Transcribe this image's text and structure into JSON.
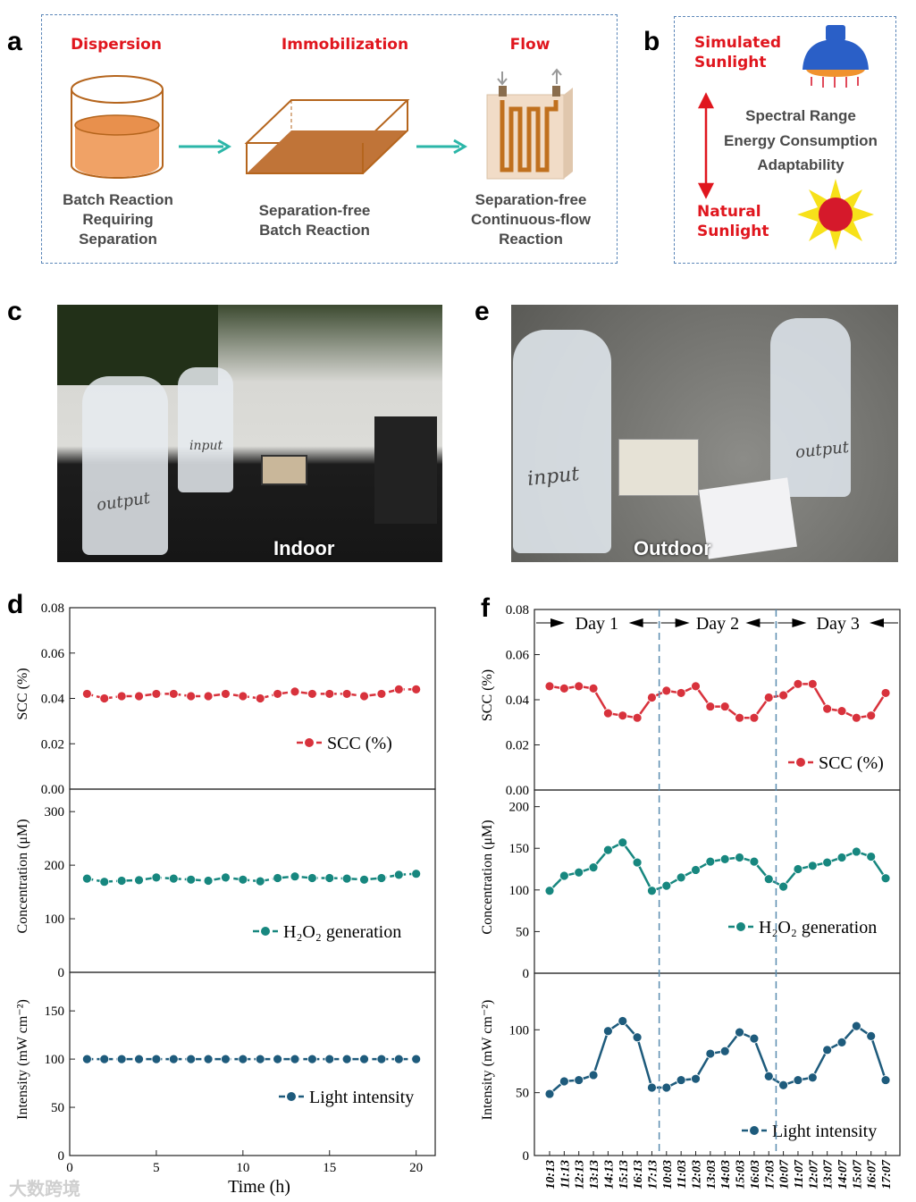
{
  "panel_labels": {
    "a": "a",
    "b": "b",
    "c": "c",
    "d": "d",
    "e": "e",
    "f": "f"
  },
  "panel_a": {
    "steps": [
      {
        "title": "Dispersion",
        "caption": [
          "Batch Reaction",
          "Requiring",
          "Separation"
        ]
      },
      {
        "title": "Immobilization",
        "caption": [
          "Separation-free",
          "Batch Reaction"
        ]
      },
      {
        "title": "Flow",
        "caption": [
          "Separation-free",
          "Continuous-flow",
          "Reaction"
        ]
      }
    ]
  },
  "panel_b": {
    "top_label": [
      "Simulated",
      "Sunlight"
    ],
    "bottom_label": [
      "Natural",
      "Sunlight"
    ],
    "criteria": [
      "Spectral Range",
      "Energy Consumption",
      "Adaptability"
    ]
  },
  "panel_c": {
    "label": "Indoor",
    "bottle_labels": [
      "output",
      "input"
    ]
  },
  "panel_e": {
    "label": "Outdoor",
    "bottle_labels": [
      "input",
      "output"
    ]
  },
  "watermark": "大数跨境",
  "colors": {
    "scc": "#d8323c",
    "h2o2": "#17877f",
    "light": "#1e5b7c",
    "divider": "#5b8db0",
    "title_red": "#e0161e"
  },
  "chart_data": [
    {
      "id": "d",
      "type": "line",
      "xlabel": "Time (h)",
      "x_ticks": [
        "0",
        "5",
        "10",
        "15",
        "20"
      ],
      "xlim": [
        0,
        21.1
      ],
      "x": [
        1,
        2,
        3,
        4,
        5,
        6,
        7,
        8,
        9,
        10,
        11,
        12,
        13,
        14,
        15,
        16,
        17,
        18,
        19,
        20
      ],
      "subplots": [
        {
          "name": "SCC (%)",
          "ylabel": "SCC (%)",
          "ylim": [
            0,
            0.08
          ],
          "y_ticks": [
            "0.00",
            "0.02",
            "0.04",
            "0.06",
            "0.08"
          ],
          "values": [
            0.042,
            0.04,
            0.041,
            0.041,
            0.042,
            0.042,
            0.041,
            0.041,
            0.042,
            0.041,
            0.04,
            0.042,
            0.043,
            0.042,
            0.042,
            0.042,
            0.041,
            0.042,
            0.044,
            0.044
          ]
        },
        {
          "name": "H₂O₂ generation",
          "ylabel": "Concentration (μM)",
          "ylim": [
            0,
            342
          ],
          "y_ticks": [
            "0",
            "100",
            "200",
            "300"
          ],
          "values": [
            175,
            169,
            171,
            172,
            177,
            175,
            173,
            171,
            177,
            173,
            170,
            176,
            179,
            176,
            176,
            175,
            173,
            176,
            182,
            184
          ]
        },
        {
          "name": "Light intensity",
          "ylabel": "Intensity (mW cm⁻²)",
          "ylim": [
            0,
            190
          ],
          "y_ticks": [
            "0",
            "50",
            "100",
            "150"
          ],
          "values": [
            100,
            100,
            100,
            100,
            100,
            100,
            100,
            100,
            100,
            100,
            100,
            100,
            100,
            100,
            100,
            100,
            100,
            100,
            100,
            100
          ]
        }
      ]
    },
    {
      "id": "f",
      "type": "line",
      "xlabel": "",
      "categories": [
        "10:13",
        "11:13",
        "12:13",
        "13:13",
        "14:13",
        "15:13",
        "16:13",
        "17:13",
        "10:03",
        "11:03",
        "12:03",
        "13:03",
        "14:03",
        "15:03",
        "16:03",
        "17:03",
        "10:07",
        "11:07",
        "12:07",
        "13:07",
        "14:07",
        "15:07",
        "16:07",
        "17:07"
      ],
      "day_labels": [
        "Day 1",
        "Day 2",
        "Day 3"
      ],
      "subplots": [
        {
          "name": "SCC (%)",
          "ylabel": "SCC (%)",
          "ylim": [
            0,
            0.08
          ],
          "y_ticks": [
            "0.00",
            "0.02",
            "0.04",
            "0.06",
            "0.08"
          ],
          "values": [
            0.046,
            0.045,
            0.046,
            0.045,
            0.034,
            0.033,
            0.032,
            0.041,
            0.044,
            0.043,
            0.046,
            0.037,
            0.037,
            0.032,
            0.032,
            0.041,
            0.042,
            0.047,
            0.047,
            0.036,
            0.035,
            0.032,
            0.033,
            0.043
          ]
        },
        {
          "name": "H₂O₂ generation",
          "ylabel": "Concentration (μM)",
          "ylim": [
            0,
            220
          ],
          "y_ticks": [
            "0",
            "50",
            "100",
            "150",
            "200"
          ],
          "values": [
            99,
            117,
            121,
            127,
            148,
            157,
            133,
            99,
            105,
            115,
            124,
            134,
            137,
            139,
            134,
            113,
            104,
            125,
            129,
            133,
            139,
            146,
            140,
            114
          ]
        },
        {
          "name": "Light intensity",
          "ylabel": "Intensity (mW cm⁻²)",
          "ylim": [
            0,
            145
          ],
          "y_ticks": [
            "0",
            "50",
            "100"
          ],
          "values": [
            49,
            59,
            60,
            64,
            99,
            107,
            94,
            54,
            54,
            60,
            61,
            81,
            83,
            98,
            93,
            63,
            56,
            60,
            62,
            84,
            90,
            103,
            95,
            60
          ]
        }
      ]
    }
  ]
}
